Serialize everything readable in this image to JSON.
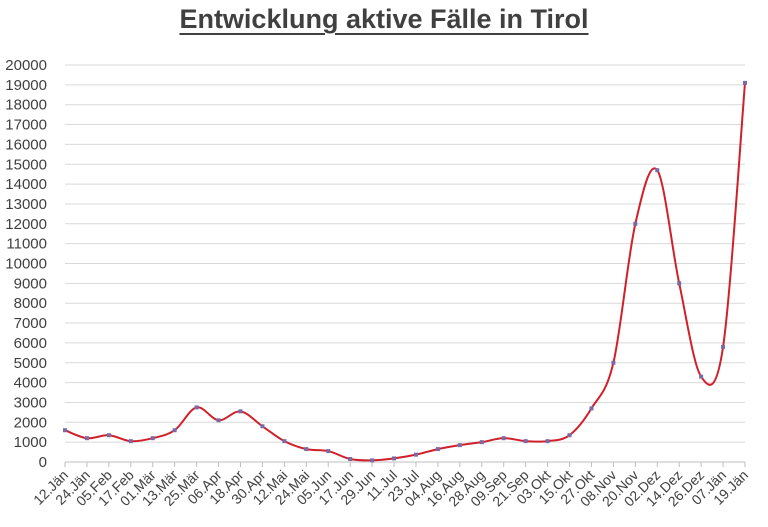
{
  "chart_data": {
    "type": "line",
    "title": "Entwicklung aktive Fälle in Tirol",
    "xlabel": "",
    "ylabel": "",
    "ylim": [
      0,
      20000
    ],
    "yticks": [
      0,
      1000,
      2000,
      3000,
      4000,
      5000,
      6000,
      7000,
      8000,
      9000,
      10000,
      11000,
      12000,
      13000,
      14000,
      15000,
      16000,
      17000,
      18000,
      19000,
      20000
    ],
    "grid": true,
    "legend": "none",
    "categories": [
      "12.Jän",
      "24.Jän",
      "05.Feb",
      "17.Feb",
      "01.Mär",
      "13.Mär",
      "25.Mär",
      "06.Apr",
      "18.Apr",
      "30.Apr",
      "12.Mai",
      "24.Mai",
      "05.Jun",
      "17.Jun",
      "29.Jun",
      "11.Jul",
      "23.Jul",
      "04.Aug",
      "16.Aug",
      "28.Aug",
      "09.Sep",
      "21.Sep",
      "03.Okt",
      "15.Okt",
      "27.Okt",
      "08.Nov",
      "20.Nov",
      "02.Dez",
      "14.Dez",
      "26.Dez",
      "07.Jän",
      "19.Jän"
    ],
    "series": [
      {
        "values": [
          1600,
          1200,
          1350,
          1050,
          1200,
          1600,
          2750,
          2100,
          2550,
          1800,
          1050,
          650,
          550,
          150,
          80,
          180,
          370,
          650,
          850,
          1000,
          1200,
          1050,
          1050,
          1350,
          2700,
          5000,
          12000,
          14700,
          9000,
          4300,
          5800,
          19100
        ]
      }
    ],
    "colors": {
      "line": "#d0202a",
      "marker": "#7a6aa8",
      "grid": "#d9d9d9",
      "text": "#404040"
    }
  }
}
